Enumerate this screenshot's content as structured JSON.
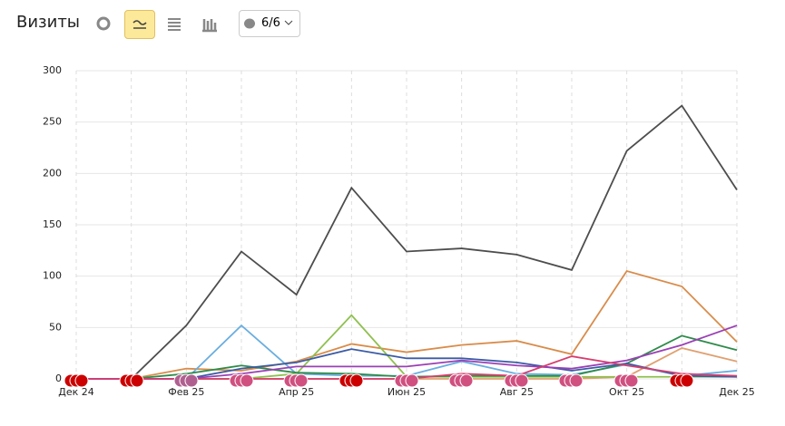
{
  "header": {
    "title": "Визиты",
    "counter": "6/6"
  },
  "chart_data": {
    "type": "line",
    "categories": [
      "Дек 24",
      null,
      "Фев 25",
      null,
      "Апр 25",
      null,
      "Июн 25",
      null,
      "Авг 25",
      null,
      "Окт 25",
      null,
      "Дек 25"
    ],
    "series": [
      {
        "color": "#4d4d4d",
        "values": [
          0,
          0,
          52,
          124,
          82,
          186,
          124,
          127,
          121,
          106,
          222,
          266,
          184
        ]
      },
      {
        "color": "#d98c4a",
        "values": [
          0,
          0,
          10,
          8,
          17,
          34,
          26,
          33,
          37,
          24,
          105,
          90,
          36
        ]
      },
      {
        "color": "#e0a070",
        "values": [
          0,
          0,
          0,
          0,
          0,
          0,
          0,
          0,
          0,
          0,
          2,
          30,
          17
        ]
      },
      {
        "color": "#6aaee0",
        "values": [
          0,
          0,
          0,
          52,
          5,
          3,
          3,
          17,
          5,
          4,
          14,
          3,
          8
        ]
      },
      {
        "color": "#8fc04f",
        "values": [
          0,
          0,
          0,
          0,
          5,
          62,
          2,
          2,
          2,
          2,
          2,
          2,
          2
        ]
      },
      {
        "color": "#2e8b4a",
        "values": [
          0,
          0,
          5,
          13,
          6,
          5,
          2,
          3,
          3,
          3,
          15,
          42,
          28
        ]
      },
      {
        "color": "#3b5ba5",
        "values": [
          0,
          0,
          0,
          10,
          16,
          29,
          20,
          20,
          16,
          8,
          15,
          3,
          2
        ]
      },
      {
        "color": "#9b3fb5",
        "values": [
          0,
          0,
          0,
          5,
          12,
          12,
          12,
          18,
          13,
          10,
          18,
          33,
          52
        ]
      },
      {
        "color": "#d63e6e",
        "values": [
          0,
          0,
          0,
          0,
          0,
          0,
          0,
          5,
          3,
          22,
          13,
          5,
          3
        ]
      }
    ],
    "ylim": [
      0,
      300
    ],
    "yticks": [
      0,
      50,
      100,
      150,
      200,
      250,
      300
    ],
    "grid": true
  }
}
